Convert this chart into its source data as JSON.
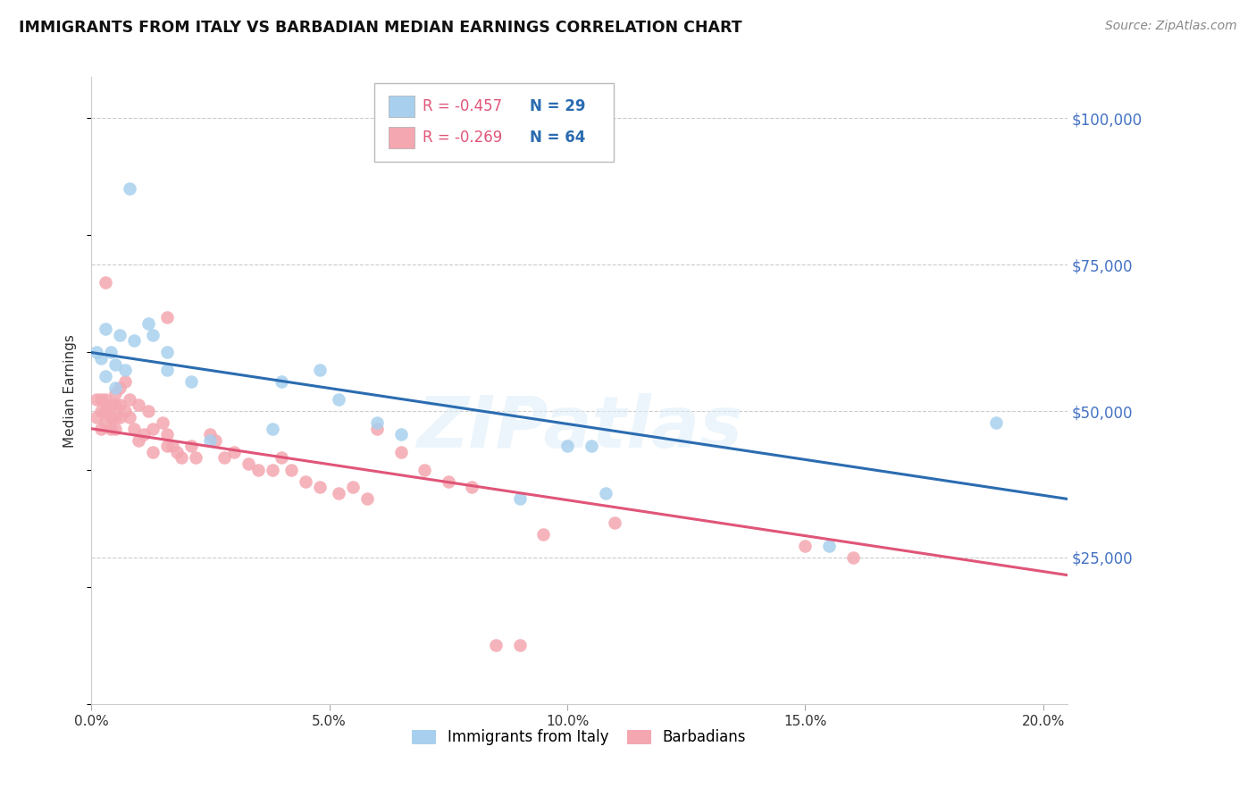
{
  "title": "IMMIGRANTS FROM ITALY VS BARBADIAN MEDIAN EARNINGS CORRELATION CHART",
  "source": "Source: ZipAtlas.com",
  "ylabel": "Median Earnings",
  "y_ticks": [
    0,
    25000,
    50000,
    75000,
    100000
  ],
  "y_tick_labels": [
    "",
    "$25,000",
    "$50,000",
    "$75,000",
    "$100,000"
  ],
  "x_ticks": [
    0.0,
    0.05,
    0.1,
    0.15,
    0.2
  ],
  "x_tick_labels": [
    "0.0%",
    "5.0%",
    "10.0%",
    "15.0%",
    "20.0%"
  ],
  "xlim": [
    0.0,
    0.205
  ],
  "ylim": [
    0,
    107000
  ],
  "legend_blue_r": "-0.457",
  "legend_blue_n": "29",
  "legend_pink_r": "-0.269",
  "legend_pink_n": "64",
  "legend_label_blue": "Immigrants from Italy",
  "legend_label_pink": "Barbadians",
  "watermark": "ZIPatlas",
  "blue_dot_color": "#a8d0ee",
  "blue_line_color": "#2b6cb0",
  "pink_dot_color": "#f4a7b0",
  "pink_line_color": "#e05578",
  "blue_points_x": [
    0.001,
    0.002,
    0.003,
    0.004,
    0.005,
    0.006,
    0.007,
    0.009,
    0.012,
    0.013,
    0.016,
    0.016,
    0.021,
    0.038,
    0.048,
    0.052,
    0.06,
    0.065,
    0.09,
    0.1,
    0.105,
    0.108,
    0.155,
    0.19,
    0.04,
    0.025,
    0.003,
    0.005,
    0.008
  ],
  "blue_points_y": [
    60000,
    59000,
    64000,
    60000,
    58000,
    63000,
    57000,
    62000,
    65000,
    63000,
    60000,
    57000,
    55000,
    47000,
    57000,
    52000,
    48000,
    46000,
    35000,
    44000,
    44000,
    36000,
    27000,
    48000,
    55000,
    45000,
    56000,
    54000,
    88000
  ],
  "pink_points_x": [
    0.001,
    0.001,
    0.002,
    0.002,
    0.002,
    0.003,
    0.003,
    0.003,
    0.004,
    0.004,
    0.004,
    0.005,
    0.005,
    0.005,
    0.005,
    0.006,
    0.006,
    0.006,
    0.007,
    0.007,
    0.008,
    0.008,
    0.009,
    0.01,
    0.01,
    0.011,
    0.012,
    0.013,
    0.013,
    0.015,
    0.016,
    0.016,
    0.017,
    0.018,
    0.019,
    0.021,
    0.022,
    0.025,
    0.026,
    0.028,
    0.03,
    0.033,
    0.035,
    0.038,
    0.04,
    0.042,
    0.045,
    0.048,
    0.052,
    0.055,
    0.058,
    0.06,
    0.065,
    0.07,
    0.075,
    0.08,
    0.085,
    0.09,
    0.095,
    0.11,
    0.15,
    0.16,
    0.003,
    0.016
  ],
  "pink_points_y": [
    52000,
    49000,
    52000,
    50000,
    47000,
    52000,
    50000,
    48000,
    51000,
    49000,
    47000,
    53000,
    51000,
    49000,
    47000,
    54000,
    51000,
    49000,
    55000,
    50000,
    52000,
    49000,
    47000,
    51000,
    45000,
    46000,
    50000,
    47000,
    43000,
    48000,
    46000,
    44000,
    44000,
    43000,
    42000,
    44000,
    42000,
    46000,
    45000,
    42000,
    43000,
    41000,
    40000,
    40000,
    42000,
    40000,
    38000,
    37000,
    36000,
    37000,
    35000,
    47000,
    43000,
    40000,
    38000,
    37000,
    10000,
    10000,
    29000,
    31000,
    27000,
    25000,
    72000,
    66000
  ]
}
